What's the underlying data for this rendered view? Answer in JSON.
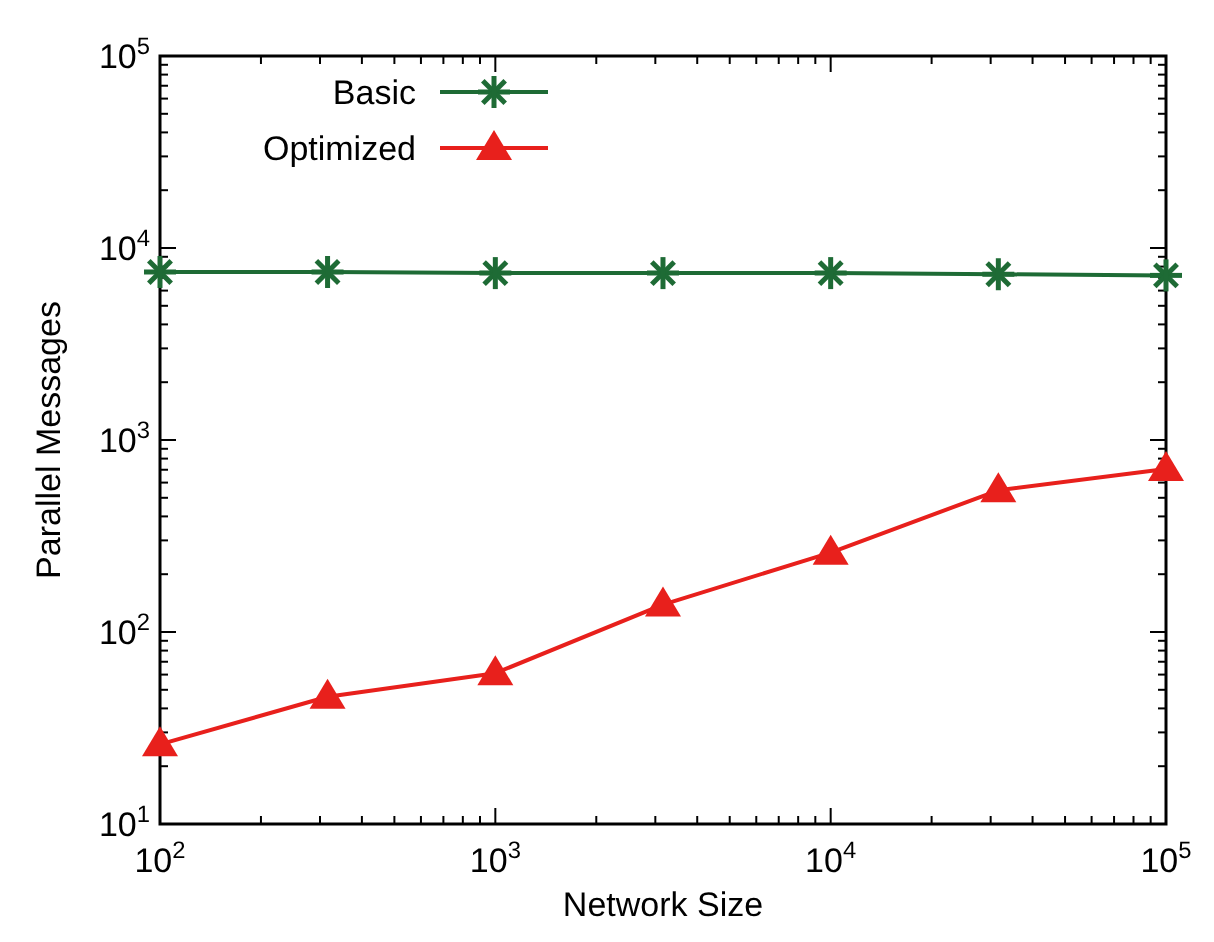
{
  "chart_data": {
    "type": "line",
    "xlabel": "Network Size",
    "ylabel": "Parallel Messages",
    "log": "xy",
    "xlim": [
      100,
      100000
    ],
    "ylim": [
      10,
      100000
    ],
    "xticks": [
      {
        "value": 100,
        "label": "10$^{2}$"
      },
      {
        "value": 1000,
        "label": "10$^{3}$"
      },
      {
        "value": 10000,
        "label": "10$^{4}$"
      },
      {
        "value": 100000,
        "label": "10$^{5}$"
      }
    ],
    "yticks": [
      {
        "value": 10,
        "label": "10$^{1}$"
      },
      {
        "value": 100,
        "label": "10$^{2}$"
      },
      {
        "value": 1000,
        "label": "10$^{3}$"
      },
      {
        "value": 10000,
        "label": "10$^{4}$"
      },
      {
        "value": 100000,
        "label": "10$^{5}$"
      }
    ],
    "x": [
      100,
      316,
      1000,
      3162,
      10000,
      31623,
      100000
    ],
    "legend": "top left",
    "grid": false,
    "series": [
      {
        "name": "Basic",
        "color": "#1e6b35",
        "marker": "cross",
        "values": [
          7500,
          7500,
          7400,
          7400,
          7400,
          7300,
          7200
        ]
      },
      {
        "name": "Optimized",
        "color": "#e8201c",
        "marker": "triangle",
        "values": [
          26,
          46,
          61,
          139,
          259,
          547,
          706
        ]
      }
    ]
  }
}
